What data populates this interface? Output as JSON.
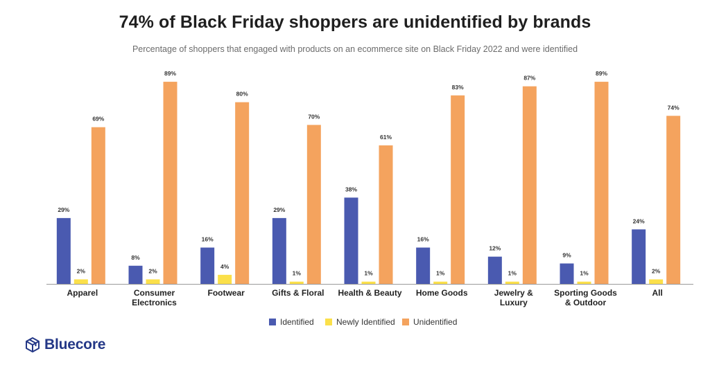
{
  "header": {
    "title": "74% of Black Friday shoppers are unidentified by brands",
    "subtitle": "Percentage of shoppers that engaged with products on an ecommerce site on Black Friday 2022 and were identified"
  },
  "brand": {
    "name": "Bluecore",
    "icon": "cube-logo-icon",
    "color": "#243887"
  },
  "chart_data": {
    "type": "bar",
    "title": "74% of Black Friday shoppers are unidentified by brands",
    "subtitle": "Percentage of shoppers that engaged with products on an ecommerce site on Black Friday 2022 and were identified",
    "categories": [
      [
        "Apparel"
      ],
      [
        "Consumer",
        "Electronics"
      ],
      [
        "Footwear"
      ],
      [
        "Gifts & Floral"
      ],
      [
        "Health & Beauty"
      ],
      [
        "Home Goods"
      ],
      [
        "Jewelry &",
        "Luxury"
      ],
      [
        "Sporting Goods",
        "& Outdoor"
      ],
      [
        "All"
      ]
    ],
    "series": [
      {
        "name": "Identified",
        "color": "#4a5ab0",
        "values": [
          29,
          8,
          16,
          29,
          38,
          16,
          12,
          9,
          24
        ],
        "labels": [
          "29%",
          "8%",
          "16%",
          "29%",
          "38%",
          "16%",
          "12%",
          "9%",
          "24%"
        ]
      },
      {
        "name": "Newly Identified",
        "color": "#fbe04a",
        "values": [
          2,
          2,
          4,
          1,
          1,
          1,
          1,
          1,
          2
        ],
        "labels": [
          "2%",
          "2%",
          "4%",
          "1%",
          "1%",
          "1%",
          "1%",
          "1%",
          "2%"
        ]
      },
      {
        "name": "Unidentified",
        "color": "#f4a35e",
        "values": [
          69,
          89,
          80,
          70,
          61,
          83,
          87,
          89,
          74
        ],
        "labels": [
          "69%",
          "89%",
          "80%",
          "70%",
          "61%",
          "83%",
          "87%",
          "89%",
          "74%"
        ]
      }
    ],
    "ylim": [
      0,
      100
    ],
    "grid": false,
    "legend": "bottom-center"
  }
}
